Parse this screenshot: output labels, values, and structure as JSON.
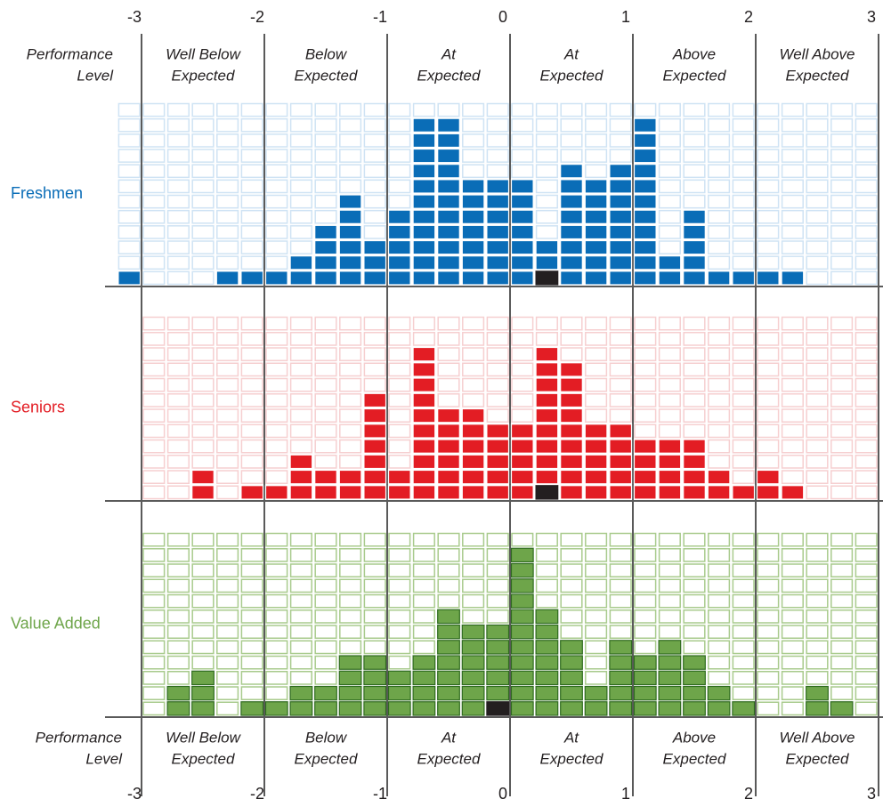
{
  "chart_data": {
    "type": "unit-histogram",
    "header_label": [
      "Performance",
      "Level"
    ],
    "level_labels": [
      [
        "Well Below",
        "Expected"
      ],
      [
        "Below",
        "Expected"
      ],
      [
        "At",
        "Expected"
      ],
      [
        "At",
        "Expected"
      ],
      [
        "Above",
        "Expected"
      ],
      [
        "Well Above",
        "Expected"
      ]
    ],
    "xlim": [
      -3.2,
      3
    ],
    "xticks": [
      -3,
      -2,
      -1,
      0,
      1,
      2,
      3
    ],
    "ylim": [
      0,
      12
    ],
    "bins": [
      -3.2,
      -3,
      -2.8,
      -2.6,
      -2.4,
      -2.2,
      -2,
      -1.8,
      -1.6,
      -1.4,
      -1.2,
      -1,
      -0.8,
      -0.6,
      -0.4,
      -0.2,
      0,
      0.2,
      0.4,
      0.6,
      0.8,
      1,
      1.2,
      1.4,
      1.6,
      1.8,
      2,
      2.2,
      2.4,
      2.6,
      2.8,
      3
    ],
    "highlight_color": "#231f20",
    "series": [
      {
        "name": "Freshmen",
        "color": "#0a6db7",
        "cell_edge": "#ffffff",
        "empty_color": "#cfe3f4",
        "highlight_bin": 17,
        "values": [
          1,
          0,
          0,
          0,
          1,
          1,
          1,
          2,
          4,
          6,
          3,
          5,
          11,
          11,
          7,
          7,
          7,
          3,
          8,
          7,
          8,
          11,
          2,
          5,
          1,
          1,
          1,
          1,
          0,
          0,
          0
        ]
      },
      {
        "name": "Seniors",
        "color": "#e31d24",
        "cell_edge": "#ffffff",
        "empty_color": "#f6cfd0",
        "highlight_bin": 17,
        "values": [
          null,
          0,
          0,
          2,
          0,
          1,
          1,
          3,
          2,
          2,
          7,
          2,
          10,
          6,
          6,
          5,
          5,
          10,
          9,
          5,
          5,
          4,
          4,
          4,
          2,
          1,
          2,
          1,
          0,
          0,
          0
        ]
      },
      {
        "name": "Value Added",
        "color": "#6ea54a",
        "cell_edge": "#2f6b1f",
        "empty_color": "#a9cb8d",
        "highlight_bin": 15,
        "values": [
          null,
          0,
          2,
          3,
          0,
          1,
          1,
          2,
          2,
          4,
          4,
          3,
          4,
          7,
          6,
          6,
          11,
          7,
          5,
          2,
          5,
          4,
          5,
          4,
          2,
          1,
          0,
          0,
          2,
          1,
          0
        ]
      }
    ]
  }
}
